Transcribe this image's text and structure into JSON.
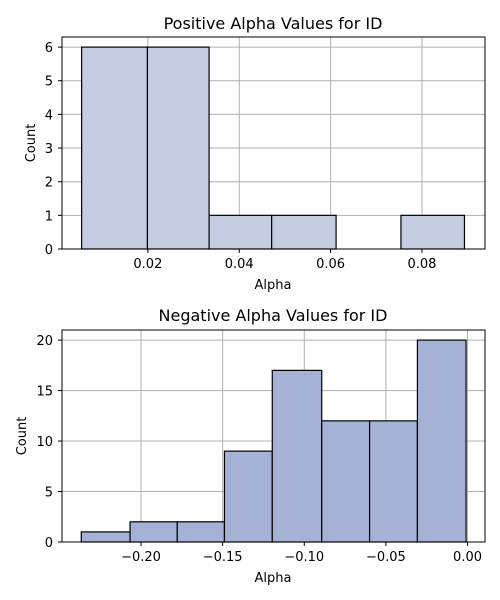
{
  "chart_data": [
    {
      "type": "bar",
      "title": "Positive Alpha Values for ID",
      "xlabel": "Alpha",
      "ylabel": "Count",
      "bar_color": "#c4cde2",
      "grid": true,
      "xlim": [
        0.0012,
        0.0938
      ],
      "ylim": [
        0,
        6.3
      ],
      "x_ticks": [
        0.02,
        0.04,
        0.06,
        0.08
      ],
      "x_tick_labels": [
        "0.02",
        "0.04",
        "0.06",
        "0.08"
      ],
      "y_ticks": [
        0,
        1,
        2,
        3,
        4,
        5,
        6
      ],
      "y_tick_labels": [
        "0",
        "1",
        "2",
        "3",
        "4",
        "5",
        "6"
      ],
      "bins": [
        {
          "x0": 0.0055,
          "x1": 0.0199,
          "value": 6
        },
        {
          "x0": 0.0199,
          "x1": 0.0334,
          "value": 6
        },
        {
          "x0": 0.0334,
          "x1": 0.0471,
          "value": 1
        },
        {
          "x0": 0.0471,
          "x1": 0.0612,
          "value": 1
        },
        {
          "x0": 0.0612,
          "x1": 0.0754,
          "value": 0
        },
        {
          "x0": 0.0754,
          "x1": 0.0893,
          "value": 1
        }
      ]
    },
    {
      "type": "bar",
      "title": "Negative Alpha Values for ID",
      "xlabel": "Alpha",
      "ylabel": "Count",
      "bar_color": "#a5b2d6",
      "grid": true,
      "xlim": [
        -0.2484,
        0.0107
      ],
      "ylim": [
        0,
        21
      ],
      "x_ticks": [
        -0.2,
        -0.15,
        -0.1,
        -0.05,
        0.0
      ],
      "x_tick_labels": [
        "−0.20",
        "−0.15",
        "−0.10",
        "−0.05",
        "0.00"
      ],
      "y_ticks": [
        0,
        5,
        10,
        15,
        20
      ],
      "y_tick_labels": [
        "0",
        "5",
        "10",
        "15",
        "20"
      ],
      "bins": [
        {
          "x0": -0.2366,
          "x1": -0.2067,
          "value": 1
        },
        {
          "x0": -0.2067,
          "x1": -0.1778,
          "value": 2
        },
        {
          "x0": -0.1778,
          "x1": -0.1489,
          "value": 2
        },
        {
          "x0": -0.1489,
          "x1": -0.1196,
          "value": 9
        },
        {
          "x0": -0.1196,
          "x1": -0.0893,
          "value": 17
        },
        {
          "x0": -0.0893,
          "x1": -0.06,
          "value": 12
        },
        {
          "x0": -0.06,
          "x1": -0.0307,
          "value": 12
        },
        {
          "x0": -0.0307,
          "x1": -0.0009,
          "value": 20
        }
      ]
    }
  ]
}
